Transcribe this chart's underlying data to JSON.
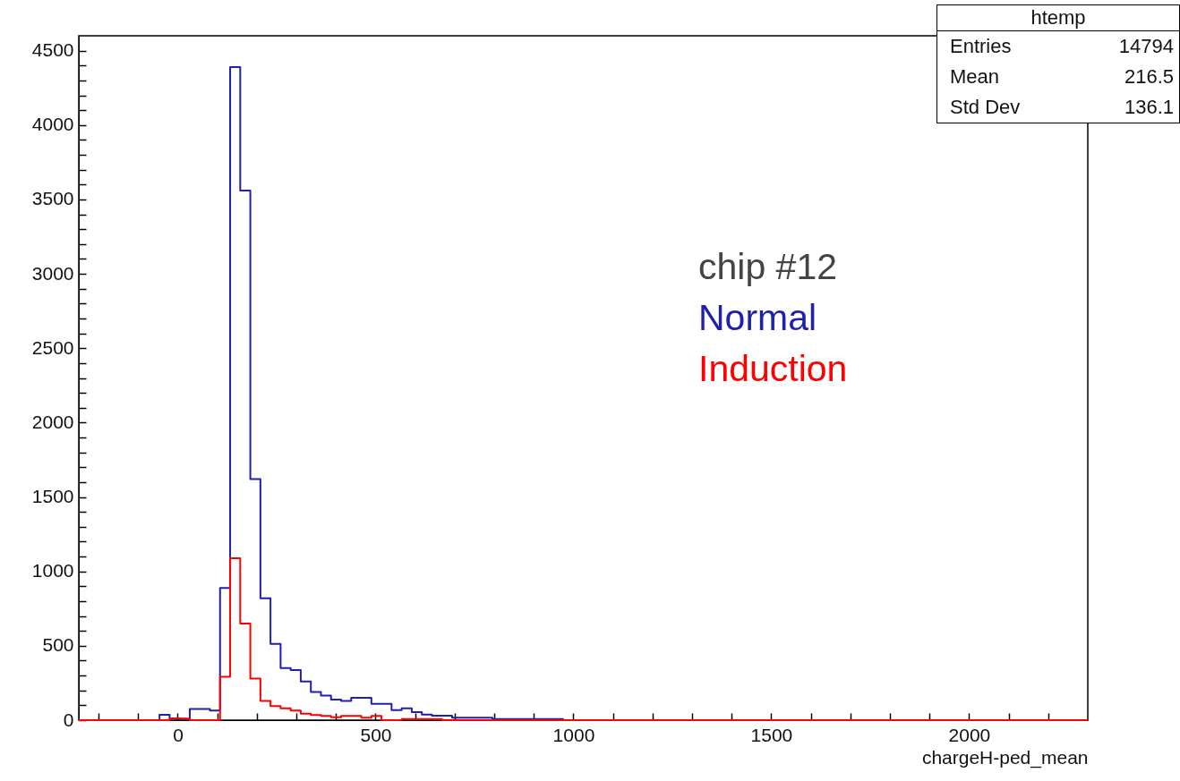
{
  "chart_data": {
    "type": "histogram",
    "xlabel": "chargeH-ped_mean",
    "bins": [
      -250,
      -224.5,
      -199,
      -173.5,
      -148,
      -122.5,
      -97,
      -71.5,
      -46,
      -20.5,
      5,
      30.5,
      56,
      81.5,
      107,
      132.5,
      158,
      183.5,
      209,
      234.5,
      260,
      285.5,
      311,
      336.5,
      362,
      387.5,
      413,
      438.5,
      464,
      489.5,
      515,
      540.5,
      566,
      591.5,
      617,
      642.5,
      668,
      693.5,
      719,
      744.5,
      770,
      795.5,
      821,
      846.5,
      872,
      897.5,
      923,
      948.5,
      974,
      999.5,
      1025,
      1050.5,
      1076,
      1101.5,
      1127,
      1152.5,
      1178,
      1203.5,
      1229,
      1254.5,
      1280,
      1305.5,
      1331,
      1356.5,
      1382,
      1407.5,
      1433,
      1458.5,
      1484,
      1509.5,
      1535,
      1560.5,
      1586,
      1611.5,
      1637,
      1662.5,
      1688,
      1713.5,
      1739,
      1764.5,
      1790,
      1815.5,
      1841,
      1866.5,
      1892,
      1917.5,
      1943,
      1968.5,
      1994,
      2019.5,
      2045,
      2070.5,
      2096,
      2121.5,
      2147,
      2172.5,
      2198,
      2223.5,
      2249,
      2274.5,
      2300
    ],
    "series": [
      {
        "name": "Normal",
        "color": "#1f1fb0",
        "values": [
          0,
          0,
          0,
          0,
          0,
          0,
          0,
          0,
          36,
          12,
          8,
          75,
          75,
          65,
          888,
          4390,
          3560,
          1620,
          819,
          512,
          350,
          336,
          260,
          189,
          165,
          139,
          129,
          151,
          151,
          110,
          110,
          68,
          80,
          54,
          38,
          30,
          30,
          16,
          16,
          16,
          16,
          8,
          8,
          8,
          8,
          8,
          8,
          8,
          0,
          0,
          0,
          0,
          0,
          0,
          0,
          0,
          0,
          0,
          0,
          0,
          0,
          0,
          0,
          0,
          0,
          0,
          0,
          0,
          0,
          0,
          0,
          0,
          0,
          0,
          0,
          0,
          0,
          0,
          0,
          0,
          0,
          0,
          0,
          0,
          0,
          0,
          0,
          0,
          0,
          0,
          0,
          0,
          0,
          0,
          0,
          0,
          0,
          0,
          0,
          0
        ]
      },
      {
        "name": "Induction",
        "color": "#ff0000",
        "values": [
          0,
          0,
          0,
          0,
          0,
          0,
          0,
          0,
          0,
          10,
          10,
          0,
          0,
          0,
          292,
          1088,
          650,
          280,
          129,
          95,
          80,
          64,
          44,
          34,
          28,
          20,
          28,
          28,
          16,
          28,
          0,
          0,
          8,
          8,
          8,
          8,
          0,
          0,
          0,
          0,
          0,
          0,
          0,
          0,
          0,
          0,
          0,
          0,
          0,
          0,
          0,
          0,
          0,
          0,
          0,
          0,
          0,
          0,
          0,
          0,
          0,
          0,
          0,
          0,
          0,
          0,
          0,
          0,
          0,
          0,
          0,
          0,
          0,
          0,
          0,
          0,
          0,
          0,
          0,
          0,
          0,
          0,
          0,
          0,
          0,
          0,
          0,
          0,
          0,
          0,
          0,
          0,
          0,
          0,
          0,
          0,
          0,
          0,
          0,
          0
        ]
      }
    ],
    "xlim": [
      -250,
      2300
    ],
    "xticks": [
      {
        "value": -200,
        "label": null
      },
      {
        "value": -100,
        "label": null
      },
      0,
      {
        "value": 100,
        "label": null
      },
      {
        "value": 200,
        "label": null
      },
      {
        "value": 300,
        "label": null
      },
      {
        "value": 400,
        "label": null
      },
      500,
      {
        "value": 600,
        "label": null
      },
      {
        "value": 700,
        "label": null
      },
      {
        "value": 800,
        "label": null
      },
      {
        "value": 900,
        "label": null
      },
      1000,
      {
        "value": 1100,
        "label": null
      },
      {
        "value": 1200,
        "label": null
      },
      {
        "value": 1300,
        "label": null
      },
      {
        "value": 1400,
        "label": null
      },
      1500,
      {
        "value": 1600,
        "label": null
      },
      {
        "value": 1700,
        "label": null
      },
      {
        "value": 1800,
        "label": null
      },
      {
        "value": 1900,
        "label": null
      },
      2000,
      {
        "value": 2100,
        "label": null
      },
      {
        "value": 2200,
        "label": null
      }
    ],
    "ylim": [
      0,
      4600
    ],
    "yticks": [
      0,
      {
        "value": 100,
        "label": null
      },
      {
        "value": 200,
        "label": null
      },
      {
        "value": 300,
        "label": null
      },
      {
        "value": 400,
        "label": null
      },
      500,
      {
        "value": 600,
        "label": null
      },
      {
        "value": 700,
        "label": null
      },
      {
        "value": 800,
        "label": null
      },
      {
        "value": 900,
        "label": null
      },
      1000,
      {
        "value": 1100,
        "label": null
      },
      {
        "value": 1200,
        "label": null
      },
      {
        "value": 1300,
        "label": null
      },
      {
        "value": 1400,
        "label": null
      },
      1500,
      {
        "value": 1600,
        "label": null
      },
      {
        "value": 1700,
        "label": null
      },
      {
        "value": 1800,
        "label": null
      },
      {
        "value": 1900,
        "label": null
      },
      2000,
      {
        "value": 2100,
        "label": null
      },
      {
        "value": 2200,
        "label": null
      },
      {
        "value": 2300,
        "label": null
      },
      {
        "value": 2400,
        "label": null
      },
      2500,
      {
        "value": 2600,
        "label": null
      },
      {
        "value": 2700,
        "label": null
      },
      {
        "value": 2800,
        "label": null
      },
      {
        "value": 2900,
        "label": null
      },
      3000,
      {
        "value": 3100,
        "label": null
      },
      {
        "value": 3200,
        "label": null
      },
      {
        "value": 3300,
        "label": null
      },
      {
        "value": 3400,
        "label": null
      },
      3500,
      {
        "value": 3600,
        "label": null
      },
      {
        "value": 3700,
        "label": null
      },
      {
        "value": 3800,
        "label": null
      },
      {
        "value": 3900,
        "label": null
      },
      4000,
      {
        "value": 4100,
        "label": null
      },
      {
        "value": 4200,
        "label": null
      },
      {
        "value": 4300,
        "label": null
      },
      {
        "value": 4400,
        "label": null
      },
      4500
    ],
    "annotations": [
      "chip #12",
      "htemp",
      "Entries",
      "14794",
      "Mean",
      "216.5",
      "Std Dev",
      "136.1"
    ]
  }
}
